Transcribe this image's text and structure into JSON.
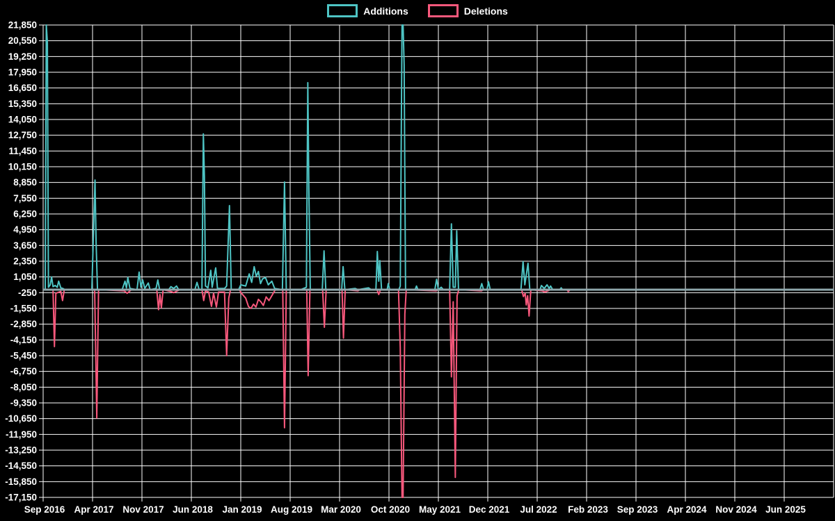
{
  "colors": {
    "background": "#000000",
    "grid": "#ffffff",
    "text": "#ffffff",
    "additions": "#4ec4c4",
    "deletions": "#f8587c",
    "baseline": "#8fa8ad"
  },
  "legend": {
    "items": [
      {
        "label": "Additions",
        "color": "#4ec4c4"
      },
      {
        "label": "Deletions",
        "color": "#f8587c"
      }
    ]
  },
  "chart_data": {
    "type": "line",
    "title": "",
    "xlabel": "",
    "ylabel": "",
    "grid": true,
    "legend_position": "top-center",
    "y_min": -17150,
    "y_max": 21850,
    "y_tick_step": 1300,
    "y_tick_values": [
      21850,
      20550,
      19250,
      17950,
      16650,
      15350,
      14050,
      12750,
      11450,
      10150,
      8850,
      7550,
      6250,
      4950,
      3650,
      2350,
      1050,
      -250,
      -1550,
      -2850,
      -4150,
      -5450,
      -6750,
      -8050,
      -9350,
      -10650,
      -11950,
      -13250,
      -14550,
      -15850,
      -17150
    ],
    "y_tick_labels": [
      "21,850",
      "20,550",
      "19,250",
      "17,950",
      "16,650",
      "15,350",
      "14,050",
      "12,750",
      "11,450",
      "10,150",
      "8,850",
      "7,550",
      "6,250",
      "4,950",
      "3,650",
      "2,350",
      "1,050",
      "-250",
      "-1,550",
      "-2,850",
      "-4,150",
      "-5,450",
      "-6,750",
      "-8,050",
      "-9,350",
      "-10,650",
      "-11,950",
      "-13,250",
      "-14,550",
      "-15,850",
      "-17,150"
    ],
    "x_tick_labels": [
      "Sep 2016",
      "Apr 2017",
      "Nov 2017",
      "Jun 2018",
      "Jan 2019",
      "Aug 2019",
      "Mar 2020",
      "Oct 2020",
      "May 2021",
      "Dec 2021",
      "Jul 2022",
      "Feb 2023",
      "Sep 2023",
      "Apr 2024",
      "Nov 2024",
      "Jun 2025"
    ],
    "x_tick_months": [
      0,
      7,
      14,
      21,
      28,
      35,
      42,
      49,
      56,
      63,
      70,
      77,
      84,
      91,
      98,
      105
    ],
    "x_unit": "months since Sep 2016",
    "x_range_months": [
      0,
      112
    ],
    "series": [
      {
        "name": "Additions",
        "color": "#4ec4c4",
        "points": [
          [
            0,
            0
          ],
          [
            0.3,
            0
          ],
          [
            0.45,
            21850
          ],
          [
            0.6,
            20400
          ],
          [
            0.75,
            200
          ],
          [
            1.0,
            400
          ],
          [
            1.2,
            1050
          ],
          [
            1.4,
            250
          ],
          [
            1.7,
            350
          ],
          [
            2.0,
            200
          ],
          [
            2.2,
            700
          ],
          [
            2.5,
            150
          ],
          [
            2.8,
            100
          ],
          [
            3.1,
            0
          ],
          [
            6.9,
            0
          ],
          [
            7.35,
            9050
          ],
          [
            7.5,
            4000
          ],
          [
            7.7,
            0
          ],
          [
            11.2,
            0
          ],
          [
            11.6,
            700
          ],
          [
            11.8,
            150
          ],
          [
            12.0,
            1000
          ],
          [
            12.3,
            100
          ],
          [
            13.3,
            0
          ],
          [
            13.6,
            1450
          ],
          [
            13.85,
            200
          ],
          [
            14.1,
            800
          ],
          [
            14.4,
            100
          ],
          [
            14.9,
            550
          ],
          [
            15.15,
            0
          ],
          [
            16.0,
            100
          ],
          [
            16.25,
            800
          ],
          [
            16.5,
            0
          ],
          [
            17.8,
            0
          ],
          [
            18.1,
            250
          ],
          [
            18.5,
            100
          ],
          [
            18.9,
            300
          ],
          [
            19.2,
            0
          ],
          [
            21.5,
            0
          ],
          [
            21.8,
            600
          ],
          [
            22.1,
            0
          ],
          [
            22.5,
            0
          ],
          [
            22.7,
            12860
          ],
          [
            22.85,
            9400
          ],
          [
            23.0,
            300
          ],
          [
            23.35,
            150
          ],
          [
            23.75,
            1600
          ],
          [
            23.95,
            200
          ],
          [
            24.45,
            1800
          ],
          [
            24.7,
            100
          ],
          [
            25.7,
            100
          ],
          [
            26.0,
            300
          ],
          [
            26.4,
            6940
          ],
          [
            26.65,
            0
          ],
          [
            27.7,
            0
          ],
          [
            28.0,
            400
          ],
          [
            28.7,
            300
          ],
          [
            29.2,
            1300
          ],
          [
            29.55,
            600
          ],
          [
            29.9,
            1900
          ],
          [
            30.2,
            1100
          ],
          [
            30.5,
            1500
          ],
          [
            30.8,
            500
          ],
          [
            31.1,
            900
          ],
          [
            31.5,
            1000
          ],
          [
            31.9,
            400
          ],
          [
            32.4,
            700
          ],
          [
            32.8,
            100
          ],
          [
            33.9,
            0
          ],
          [
            34.2,
            8890
          ],
          [
            34.45,
            0
          ],
          [
            36.5,
            0
          ],
          [
            37.3,
            200
          ],
          [
            37.5,
            17090
          ],
          [
            37.65,
            8300
          ],
          [
            37.85,
            0
          ],
          [
            39.55,
            0
          ],
          [
            39.8,
            3200
          ],
          [
            40.05,
            0
          ],
          [
            42.3,
            0
          ],
          [
            42.5,
            1900
          ],
          [
            42.75,
            0
          ],
          [
            44.2,
            100
          ],
          [
            44.6,
            0
          ],
          [
            46.1,
            150
          ],
          [
            46.5,
            0
          ],
          [
            47.15,
            0
          ],
          [
            47.35,
            3150
          ],
          [
            47.55,
            700
          ],
          [
            47.7,
            2400
          ],
          [
            47.95,
            0
          ],
          [
            48.75,
            0
          ],
          [
            48.9,
            500
          ],
          [
            49.1,
            0
          ],
          [
            50.4,
            0
          ],
          [
            50.6,
            300
          ],
          [
            50.85,
            21850
          ],
          [
            51.0,
            21850
          ],
          [
            51.15,
            18580
          ],
          [
            51.35,
            0
          ],
          [
            52.7,
            0
          ],
          [
            52.9,
            300
          ],
          [
            53.1,
            0
          ],
          [
            55.5,
            0
          ],
          [
            55.75,
            860
          ],
          [
            56.0,
            0
          ],
          [
            56.4,
            200
          ],
          [
            56.7,
            0
          ],
          [
            57.6,
            0
          ],
          [
            57.85,
            5430
          ],
          [
            58.1,
            200
          ],
          [
            58.4,
            200
          ],
          [
            58.6,
            4860
          ],
          [
            58.85,
            0
          ],
          [
            61.9,
            0
          ],
          [
            62.15,
            500
          ],
          [
            62.4,
            0
          ],
          [
            62.9,
            0
          ],
          [
            63.1,
            650
          ],
          [
            63.35,
            0
          ],
          [
            67.7,
            0
          ],
          [
            68.0,
            2310
          ],
          [
            68.25,
            400
          ],
          [
            68.7,
            2180
          ],
          [
            68.95,
            0
          ],
          [
            70.4,
            0
          ],
          [
            70.6,
            340
          ],
          [
            71.0,
            100
          ],
          [
            71.4,
            400
          ],
          [
            71.7,
            100
          ],
          [
            71.9,
            300
          ],
          [
            72.2,
            0
          ],
          [
            73.2,
            0
          ],
          [
            73.4,
            150
          ],
          [
            73.6,
            0
          ],
          [
            112,
            0
          ]
        ]
      },
      {
        "name": "Deletions",
        "color": "#f8587c",
        "points": [
          [
            0,
            0
          ],
          [
            1.4,
            0
          ],
          [
            1.6,
            -4700
          ],
          [
            1.8,
            -300
          ],
          [
            2.5,
            -150
          ],
          [
            2.75,
            -900
          ],
          [
            3.0,
            0
          ],
          [
            7.3,
            0
          ],
          [
            7.6,
            -10600
          ],
          [
            7.85,
            0
          ],
          [
            11.5,
            -100
          ],
          [
            11.9,
            -300
          ],
          [
            12.2,
            -150
          ],
          [
            12.5,
            0
          ],
          [
            16.1,
            0
          ],
          [
            16.35,
            -1650
          ],
          [
            16.55,
            -400
          ],
          [
            16.75,
            -1500
          ],
          [
            17.0,
            0
          ],
          [
            18.1,
            -150
          ],
          [
            18.5,
            -250
          ],
          [
            19.0,
            -100
          ],
          [
            19.4,
            0
          ],
          [
            22.5,
            0
          ],
          [
            22.75,
            -900
          ],
          [
            23.0,
            -100
          ],
          [
            23.45,
            -200
          ],
          [
            23.85,
            -1380
          ],
          [
            24.15,
            -300
          ],
          [
            24.55,
            -1430
          ],
          [
            24.85,
            -200
          ],
          [
            25.7,
            -200
          ],
          [
            26.0,
            -5450
          ],
          [
            26.3,
            -700
          ],
          [
            26.55,
            0
          ],
          [
            27.8,
            0
          ],
          [
            28.1,
            -300
          ],
          [
            28.7,
            -700
          ],
          [
            29.1,
            -1400
          ],
          [
            29.45,
            -1550
          ],
          [
            29.8,
            -1200
          ],
          [
            30.15,
            -1430
          ],
          [
            30.5,
            -800
          ],
          [
            30.85,
            -1000
          ],
          [
            31.2,
            -1300
          ],
          [
            31.6,
            -600
          ],
          [
            32.0,
            -900
          ],
          [
            32.5,
            -400
          ],
          [
            32.9,
            0
          ],
          [
            33.95,
            0
          ],
          [
            34.2,
            -11400
          ],
          [
            34.45,
            0
          ],
          [
            37.35,
            0
          ],
          [
            37.55,
            -7100
          ],
          [
            37.8,
            0
          ],
          [
            39.6,
            0
          ],
          [
            39.85,
            -3100
          ],
          [
            40.1,
            0
          ],
          [
            42.35,
            0
          ],
          [
            42.55,
            -4000
          ],
          [
            42.8,
            0
          ],
          [
            44.6,
            -100
          ],
          [
            44.9,
            0
          ],
          [
            47.3,
            0
          ],
          [
            47.55,
            -400
          ],
          [
            47.8,
            0
          ],
          [
            50.35,
            0
          ],
          [
            50.6,
            -4800
          ],
          [
            50.85,
            -17150
          ],
          [
            51.0,
            -17150
          ],
          [
            51.25,
            -2000
          ],
          [
            51.45,
            0
          ],
          [
            55.7,
            -100
          ],
          [
            56.0,
            0
          ],
          [
            57.6,
            0
          ],
          [
            57.85,
            -7200
          ],
          [
            58.1,
            -1000
          ],
          [
            58.4,
            -15500
          ],
          [
            58.65,
            -500
          ],
          [
            58.9,
            0
          ],
          [
            62.1,
            -100
          ],
          [
            62.4,
            0
          ],
          [
            67.8,
            0
          ],
          [
            68.05,
            -570
          ],
          [
            68.3,
            -300
          ],
          [
            68.45,
            -1260
          ],
          [
            68.65,
            -500
          ],
          [
            68.85,
            -2180
          ],
          [
            69.1,
            0
          ],
          [
            70.7,
            -100
          ],
          [
            71.1,
            -200
          ],
          [
            71.5,
            -100
          ],
          [
            71.9,
            0
          ],
          [
            74.2,
            0
          ],
          [
            74.4,
            -150
          ],
          [
            74.7,
            0
          ],
          [
            112,
            0
          ]
        ]
      }
    ]
  }
}
